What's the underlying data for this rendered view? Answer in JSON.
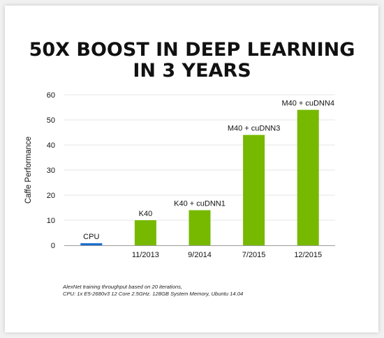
{
  "colors": {
    "background": "#f1f1f1",
    "slide": "#ffffff",
    "bar_green": "#76b900",
    "bar_blue": "#1a6fd1",
    "grid": "#e6e6e6",
    "axis": "#9a9a9a",
    "text": "#111111"
  },
  "slide": {
    "title_line1": "50X BOOST IN DEEP LEARNING",
    "title_line2": "IN 3 YEARS",
    "footnote_line1": "AlexNet training throughput based on 20 iterations,",
    "footnote_line2": "CPU: 1x E5-2680v3 12 Core 2.5GHz. 128GB System Memory, Ubuntu 14.04"
  },
  "chart_data": {
    "type": "bar",
    "title": "50X BOOST IN DEEP LEARNING IN 3 YEARS",
    "xlabel": "",
    "ylabel": "Caffe Performance",
    "ylim": [
      0,
      60
    ],
    "yticks": [
      0,
      10,
      20,
      30,
      40,
      50,
      60
    ],
    "grid": true,
    "legend": "none",
    "categories": [
      "",
      "11/2013",
      "9/2014",
      "7/2015",
      "12/2015"
    ],
    "bars": [
      {
        "label": "CPU",
        "category": "",
        "value": 1,
        "color": "#1a6fd1"
      },
      {
        "label": "K40",
        "category": "11/2013",
        "value": 10,
        "color": "#76b900"
      },
      {
        "label": "K40 + cuDNN1",
        "category": "9/2014",
        "value": 14,
        "color": "#76b900"
      },
      {
        "label": "M40 + cuDNN3",
        "category": "7/2015",
        "value": 44,
        "color": "#76b900"
      },
      {
        "label": "M40 + cuDNN4",
        "category": "12/2015",
        "value": 54,
        "color": "#76b900"
      }
    ]
  }
}
